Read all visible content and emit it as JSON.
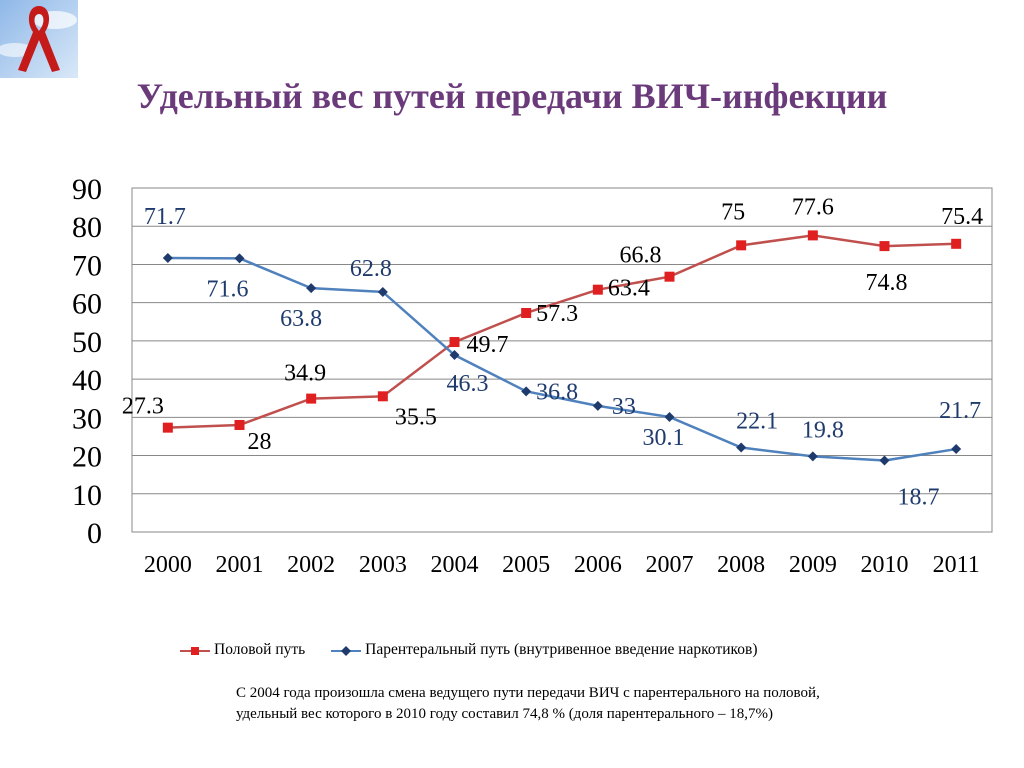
{
  "slide": {
    "title": "Удельный вес путей передачи ВИЧ-инфекции",
    "title_color": "#6b3a7a",
    "logo_icon": "red-ribbon-icon",
    "note_lines": [
      "С  2004 года произошла смена ведущего пути передачи ВИЧ с парентерального на половой,",
      "удельный вес которого в 2010 году составил 74,8 %  (доля парентерального – 18,7%)"
    ]
  },
  "chart_data": {
    "type": "line",
    "x": [
      "2000",
      "2001",
      "2002",
      "2003",
      "2004",
      "2005",
      "2006",
      "2007",
      "2008",
      "2009",
      "2010",
      "2011"
    ],
    "ylim": [
      0,
      90
    ],
    "yticks": [
      0,
      10,
      20,
      30,
      40,
      50,
      60,
      70,
      80,
      90
    ],
    "grid": true,
    "legend_position": "bottom",
    "series": [
      {
        "name": "Половой путь",
        "color": "#c0504d",
        "marker": "square",
        "values": [
          27.3,
          28,
          34.9,
          35.5,
          49.7,
          57.3,
          63.4,
          66.8,
          75,
          77.6,
          74.8,
          75.4
        ],
        "labels": [
          "27.3",
          "28",
          "34.9",
          "35.5",
          "49.7",
          "57.3",
          "63.4",
          "66.8",
          "75",
          "77.6",
          "74.8",
          "75.4"
        ]
      },
      {
        "name": "Парентеральный путь (внутривенное введение наркотиков)",
        "color": "#4f81bd",
        "marker": "diamond",
        "values": [
          71.7,
          71.6,
          63.8,
          62.8,
          46.3,
          36.8,
          33,
          30.1,
          22.1,
          19.8,
          18.7,
          21.7
        ],
        "labels": [
          "71.7",
          "71.6",
          "63.8",
          "62.8",
          "46.3",
          "36.8",
          "33",
          "30.1",
          "22.1",
          "19.8",
          "18.7",
          "21.7"
        ]
      }
    ]
  }
}
